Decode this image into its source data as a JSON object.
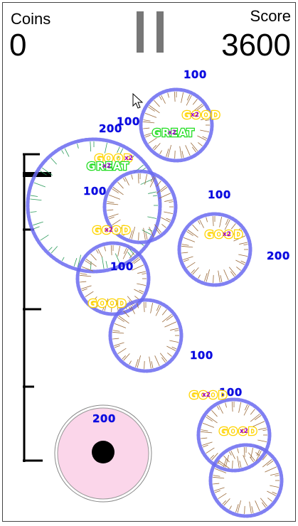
{
  "hud": {
    "coins_label": "Coins",
    "coins_value": "0",
    "score_label": "Score",
    "score_value": "3600"
  },
  "popups": {
    "p100a": "100",
    "p100b": "100",
    "p200a": "200",
    "p100c": "100",
    "p100d": "100",
    "p200b": "200",
    "p100e": "100",
    "p100f": "100",
    "p100g": "100",
    "p200c": "200",
    "good": "GOOD",
    "great": "GREAT",
    "x2": "x2"
  },
  "colors": {
    "ring": "#6a6af0",
    "points": "#0d0de0",
    "good": "#ffd400",
    "great": "#22dd22",
    "multiplier": "#a000c8",
    "launcher_fill": "#fbd6ea"
  },
  "icons": [
    "pause-icon",
    "mouse-cursor-icon"
  ]
}
